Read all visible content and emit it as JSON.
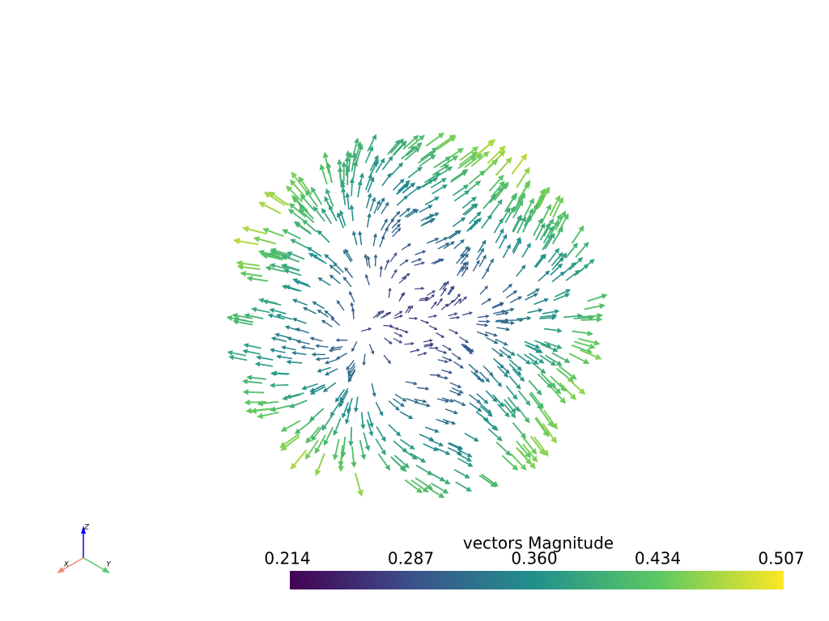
{
  "colorbar": {
    "title": "vectors Magnitude",
    "ticks": [
      "0.214",
      "0.287",
      "0.360",
      "0.434",
      "0.507"
    ]
  },
  "axes": {
    "x": "X",
    "y": "Y",
    "z": "Z"
  }
}
